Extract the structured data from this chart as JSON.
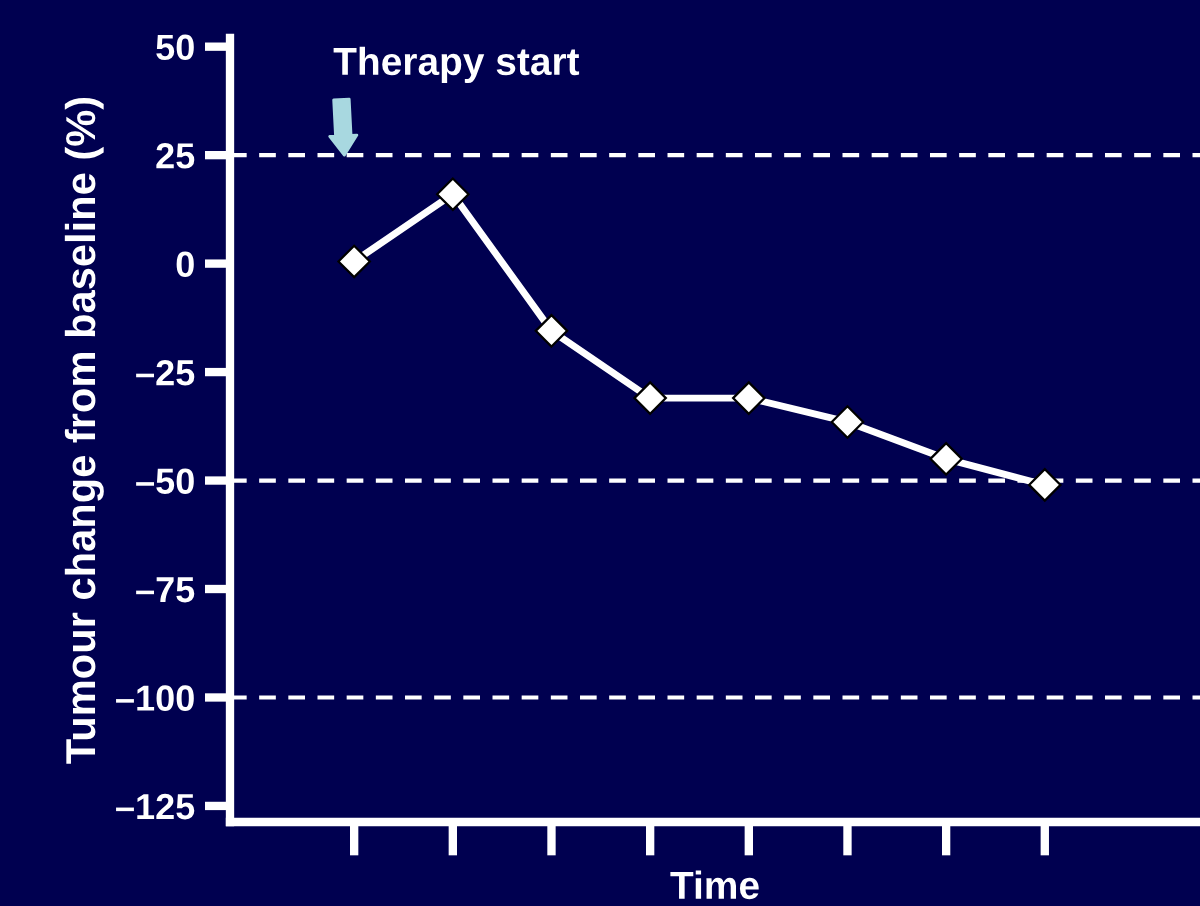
{
  "chart_data": {
    "type": "line",
    "xlabel": "Time",
    "ylabel": "Tumour change from baseline (%)",
    "categories": [
      null,
      null,
      null,
      null,
      null,
      null,
      null,
      null
    ],
    "series": [
      {
        "color": "#ffffff",
        "values": [
          0.5,
          16,
          -15.5,
          -31,
          -31,
          -36.5,
          -45,
          -51
        ]
      }
    ],
    "marker": "diamond",
    "line_style": "solid",
    "ylim": [
      -128.7,
      52
    ],
    "yticks": [
      {
        "value": 50,
        "label": "50"
      },
      {
        "value": 25,
        "label": "25"
      },
      {
        "value": 0,
        "label": "0"
      },
      {
        "value": -25,
        "label": "–25"
      },
      {
        "value": -50,
        "label": "–50"
      },
      {
        "value": -75,
        "label": "–75"
      },
      {
        "value": -100,
        "label": "–100"
      },
      {
        "value": -125,
        "label": "–125"
      }
    ],
    "ref_lines": [
      {
        "axis": "y",
        "value": 25,
        "color": "#ffffff",
        "line_style": "dashed"
      },
      {
        "axis": "y",
        "value": -50,
        "color": "#ffffff",
        "line_style": "dashed"
      },
      {
        "axis": "y",
        "value": -100,
        "color": "#ffffff",
        "line_style": "dashed"
      }
    ],
    "annotations": [
      {
        "text": "Therapy start",
        "y": 25
      }
    ]
  }
}
